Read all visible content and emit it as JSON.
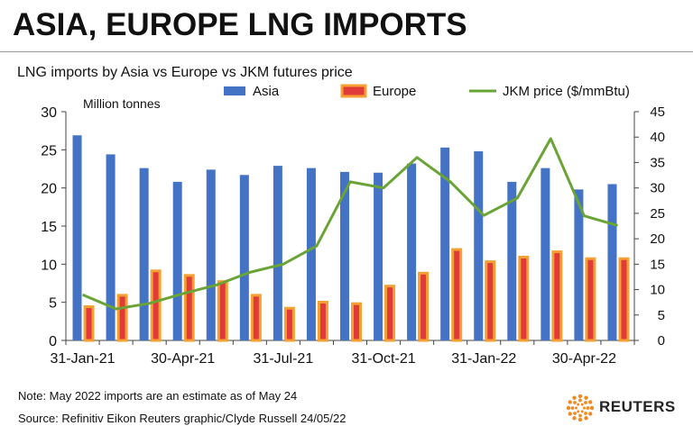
{
  "header": {
    "title": "ASIA, EUROPE LNG IMPORTS",
    "subtitle": "LNG imports by Asia vs Europe vs JKM futures price"
  },
  "footer": {
    "note": "Note: May 2022 imports are an estimate as of May 24",
    "source": "Source: Refinitiv Eikon    Reuters graphic/Clyde Russell 24/05/22"
  },
  "logo": {
    "text": "REUTERS",
    "icon": "reuters-dot-logo-icon",
    "color": "#f08a24"
  },
  "chart_data": {
    "type": "bar",
    "categories": [
      "31-Jan-21",
      "28-Feb-21",
      "31-Mar-21",
      "30-Apr-21",
      "31-May-21",
      "30-Jun-21",
      "31-Jul-21",
      "31-Aug-21",
      "30-Sep-21",
      "31-Oct-21",
      "30-Nov-21",
      "31-Dec-21",
      "31-Jan-22",
      "28-Feb-22",
      "31-Mar-22",
      "30-Apr-22",
      "31-May-22"
    ],
    "x_tick_labels": [
      "31-Jan-21",
      "30-Apr-21",
      "31-Jul-21",
      "31-Oct-21",
      "31-Jan-22",
      "30-Apr-22"
    ],
    "y_unit_label": "Million tonnes",
    "ylim": [
      0,
      30
    ],
    "yticks": [
      0,
      5,
      10,
      15,
      20,
      25,
      30
    ],
    "y2lim": [
      0,
      45
    ],
    "y2ticks": [
      0,
      5,
      10,
      15,
      20,
      25,
      30,
      35,
      40,
      45
    ],
    "grid": false,
    "legend_position": "top",
    "series": [
      {
        "name": "Asia",
        "kind": "bar",
        "axis": "left",
        "color": "#4472c4",
        "values": [
          26.9,
          24.4,
          22.6,
          20.8,
          22.4,
          21.7,
          22.9,
          22.6,
          22.1,
          22.0,
          23.2,
          25.3,
          24.8,
          20.8,
          22.6,
          19.8,
          20.5
        ]
      },
      {
        "name": "Europe",
        "kind": "bar",
        "axis": "left",
        "color": "#e03a3a",
        "border_color": "#f5a033",
        "values": [
          4.6,
          6.1,
          9.3,
          8.7,
          7.9,
          6.1,
          4.4,
          5.2,
          5.0,
          7.3,
          9.0,
          12.1,
          10.5,
          11.1,
          11.8,
          10.9,
          10.9
        ]
      },
      {
        "name": "JKM price ($/mmBtu)",
        "kind": "line",
        "axis": "right",
        "color": "#6aa336",
        "values": [
          9.0,
          6.2,
          7.3,
          9.2,
          10.9,
          13.4,
          15.0,
          18.6,
          31.2,
          30.0,
          36.0,
          31.2,
          24.6,
          28.0,
          39.7,
          24.5,
          22.6
        ]
      }
    ]
  }
}
